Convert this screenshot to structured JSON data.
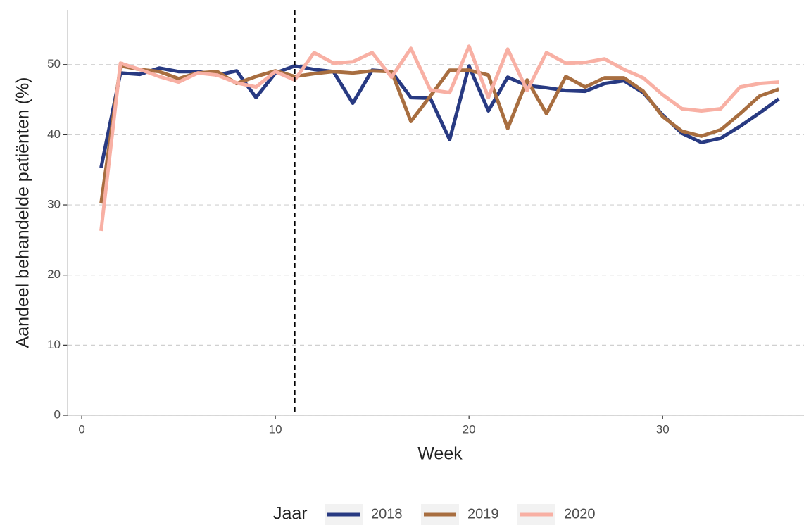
{
  "chart_data": {
    "type": "line",
    "x_label": "Week",
    "y_label": "Aandeel behandelde patiënten (%)",
    "legend_title": "Jaar",
    "x": [
      1,
      2,
      3,
      4,
      5,
      6,
      7,
      8,
      9,
      10,
      11,
      12,
      13,
      14,
      15,
      16,
      17,
      18,
      19,
      20,
      21,
      22,
      23,
      24,
      25,
      26,
      27,
      28,
      29,
      30,
      31,
      32,
      33,
      34,
      35,
      36
    ],
    "series": [
      {
        "name": "2018",
        "color": "#283a82",
        "values": [
          35.3,
          48.8,
          48.6,
          49.5,
          49.0,
          49.0,
          48.5,
          49.1,
          45.3,
          48.8,
          49.8,
          49.3,
          49.0,
          44.5,
          49.2,
          49.0,
          45.3,
          45.2,
          39.3,
          49.8,
          43.4,
          48.2,
          47.0,
          46.7,
          46.3,
          46.2,
          47.3,
          47.7,
          46.0,
          42.8,
          40.2,
          38.9,
          39.5,
          41.2,
          43.1,
          45.1
        ]
      },
      {
        "name": "2019",
        "color": "#a86e40",
        "values": [
          30.2,
          49.8,
          49.3,
          49.0,
          48.0,
          48.8,
          49.0,
          47.3,
          48.3,
          49.1,
          48.3,
          48.7,
          49.0,
          48.8,
          49.1,
          49.0,
          41.9,
          45.5,
          49.2,
          49.2,
          48.5,
          40.9,
          47.8,
          43.0,
          48.3,
          46.8,
          48.1,
          48.1,
          46.2,
          42.6,
          40.5,
          39.8,
          40.7,
          43.0,
          45.5,
          46.5
        ]
      },
      {
        "name": "2020",
        "color": "#f8b0a4",
        "values": [
          26.3,
          50.2,
          49.3,
          48.3,
          47.5,
          48.8,
          48.5,
          47.4,
          46.8,
          49.0,
          47.8,
          51.7,
          50.2,
          50.4,
          51.7,
          48.2,
          52.3,
          46.4,
          46.0,
          52.6,
          45.3,
          52.2,
          46.3,
          51.7,
          50.2,
          50.3,
          50.8,
          49.3,
          48.1,
          45.7,
          43.7,
          43.4,
          43.7,
          46.8,
          47.3,
          47.5
        ]
      }
    ],
    "xlim": [
      -0.73,
      37.3
    ],
    "xticks": [
      0,
      10,
      20,
      30
    ],
    "ylim": [
      0,
      57.8
    ],
    "yticks": [
      0,
      10,
      20,
      30,
      40,
      50
    ],
    "grid": true,
    "vline": 11,
    "legend_position": "bottom"
  }
}
